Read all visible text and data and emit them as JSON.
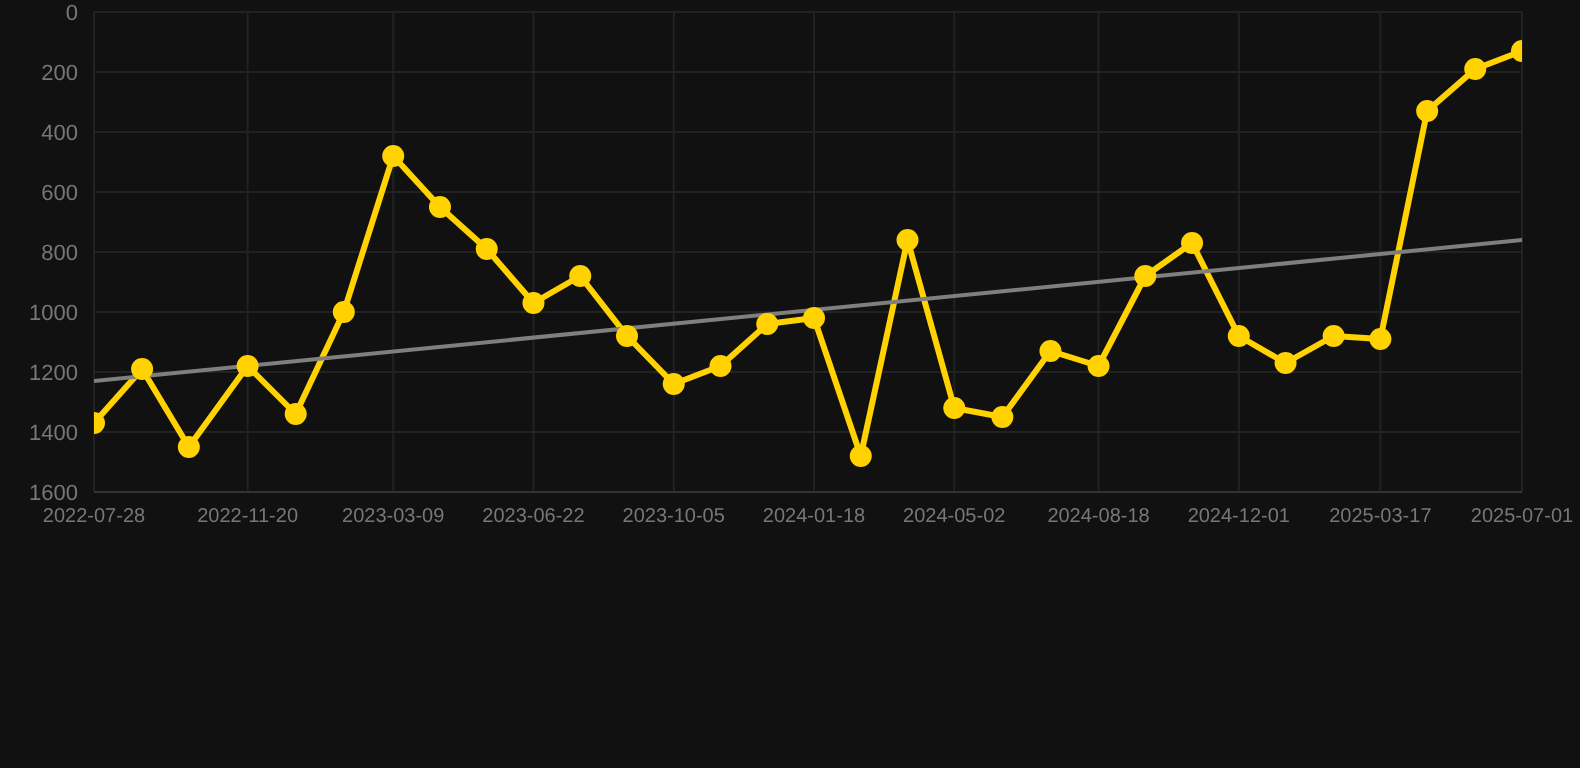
{
  "chart_data": {
    "type": "line",
    "x": [
      "2022-07-28",
      "2022-09-02",
      "2022-10-07",
      "2022-11-20",
      "2022-12-26",
      "2023-01-31",
      "2023-03-09",
      "2023-04-13",
      "2023-05-18",
      "2023-06-22",
      "2023-07-27",
      "2023-08-31",
      "2023-10-05",
      "2023-11-09",
      "2023-12-14",
      "2024-01-18",
      "2024-02-22",
      "2024-03-28",
      "2024-05-02",
      "2024-06-07",
      "2024-07-13",
      "2024-08-18",
      "2024-09-22",
      "2024-10-27",
      "2024-12-01",
      "2025-01-05",
      "2025-02-10",
      "2025-03-17",
      "2025-04-21",
      "2025-05-27",
      "2025-07-01"
    ],
    "series": [
      {
        "color": "#ffd200",
        "marker": "circle",
        "values": [
          1370,
          1190,
          1450,
          1180,
          1340,
          1000,
          480,
          650,
          790,
          970,
          880,
          1080,
          1240,
          1180,
          1040,
          1020,
          1480,
          760,
          1320,
          1350,
          1130,
          1180,
          880,
          770,
          1080,
          1170,
          1080,
          1090,
          330,
          190,
          130
        ]
      },
      {
        "type": "line",
        "color": "#7f7f7f",
        "marker": "none",
        "x": [
          "2022-07-28",
          "2025-07-01"
        ],
        "values": [
          1230,
          760
        ]
      }
    ],
    "xlim": [
      "2022-07-28",
      "2025-07-01"
    ],
    "xticks": [
      "2022-07-28",
      "2022-11-20",
      "2023-03-09",
      "2023-06-22",
      "2023-10-05",
      "2024-01-18",
      "2024-05-02",
      "2024-08-18",
      "2024-12-01",
      "2025-03-17",
      "2025-07-01"
    ],
    "ylim": [
      1600,
      0
    ],
    "yticks": [
      0,
      200,
      400,
      600,
      800,
      1000,
      1200,
      1400,
      1600
    ],
    "grid": true,
    "line_style": "solid"
  }
}
